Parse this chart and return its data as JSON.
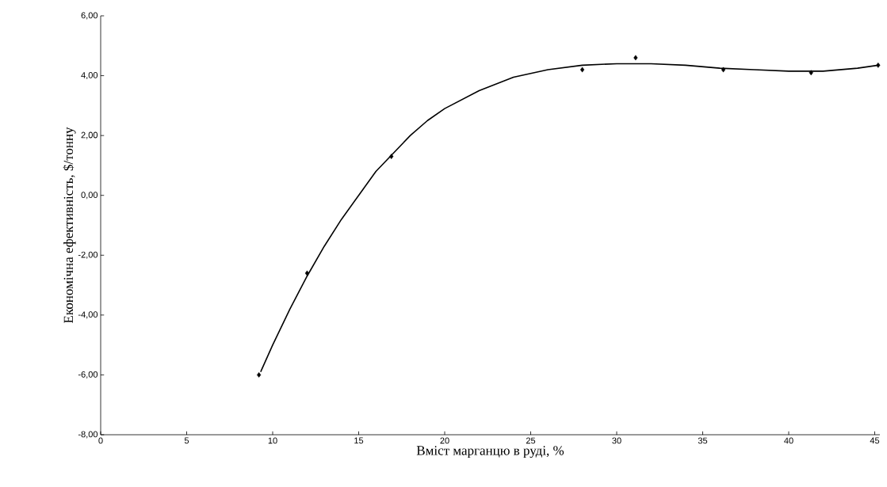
{
  "chart_data": {
    "type": "scatter",
    "xlabel": "Вміст марганцю в руді, %",
    "ylabel": "Економічна ефективність, $/тонну",
    "xlim": [
      0,
      45.3
    ],
    "ylim": [
      -8,
      6
    ],
    "xticks": [
      0,
      5,
      10,
      15,
      20,
      25,
      30,
      35,
      40,
      45
    ],
    "yticks": [
      {
        "value": -8,
        "label": "-8,00"
      },
      {
        "value": -6,
        "label": "-6,00"
      },
      {
        "value": -4,
        "label": "-4,00"
      },
      {
        "value": -2,
        "label": "-2,00"
      },
      {
        "value": 0,
        "label": "0,00"
      },
      {
        "value": 2,
        "label": "2,00"
      },
      {
        "value": 4,
        "label": "4,00"
      },
      {
        "value": 6,
        "label": "6,00"
      }
    ],
    "grid": false,
    "series": [
      {
        "marker": "diamond",
        "color": "#000000",
        "x": [
          9.2,
          12.0,
          16.9,
          28.0,
          31.1,
          36.2,
          41.3,
          45.2
        ],
        "values": [
          -6.0,
          -2.6,
          1.3,
          4.2,
          4.6,
          4.2,
          4.1,
          4.35
        ]
      },
      {
        "type": "line",
        "marker": "none",
        "line_style": "solid",
        "color": "#000000",
        "x": [
          9.3,
          10,
          11,
          12,
          13,
          14,
          15,
          16,
          17,
          18,
          19,
          20,
          22,
          24,
          26,
          28,
          30,
          32,
          34,
          36,
          38,
          40,
          42,
          44,
          45.2
        ],
        "values": [
          -5.9,
          -5.0,
          -3.8,
          -2.7,
          -1.7,
          -0.8,
          0.0,
          0.8,
          1.4,
          2.0,
          2.5,
          2.9,
          3.5,
          3.95,
          4.2,
          4.35,
          4.4,
          4.4,
          4.35,
          4.25,
          4.2,
          4.15,
          4.15,
          4.25,
          4.35
        ]
      }
    ]
  }
}
